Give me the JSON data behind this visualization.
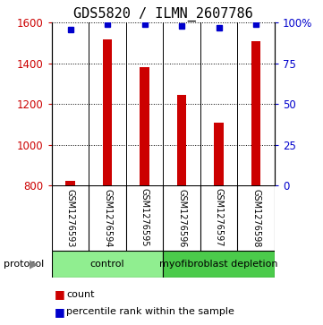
{
  "title": "GDS5820 / ILMN_2607786",
  "samples": [
    "GSM1276593",
    "GSM1276594",
    "GSM1276595",
    "GSM1276596",
    "GSM1276597",
    "GSM1276598"
  ],
  "counts": [
    820,
    1520,
    1380,
    1245,
    1110,
    1510
  ],
  "percentiles": [
    96,
    99,
    99,
    98,
    97,
    99
  ],
  "groups": [
    {
      "label": "control",
      "start": 0,
      "end": 3,
      "color": "#90EE90"
    },
    {
      "label": "myofibroblast depletion",
      "start": 3,
      "end": 6,
      "color": "#4BCB4B"
    }
  ],
  "ylim_left": [
    800,
    1600
  ],
  "ylim_right": [
    0,
    100
  ],
  "yticks_left": [
    800,
    1000,
    1200,
    1400,
    1600
  ],
  "yticks_right": [
    0,
    25,
    50,
    75,
    100
  ],
  "bar_color": "#CC0000",
  "dot_color": "#0000CC",
  "background_color": "#ffffff",
  "label_box_color": "#c8c8c8",
  "title_fontsize": 11,
  "tick_fontsize": 8.5,
  "sample_fontsize": 7,
  "legend_fontsize": 8,
  "protocol_fontsize": 8
}
